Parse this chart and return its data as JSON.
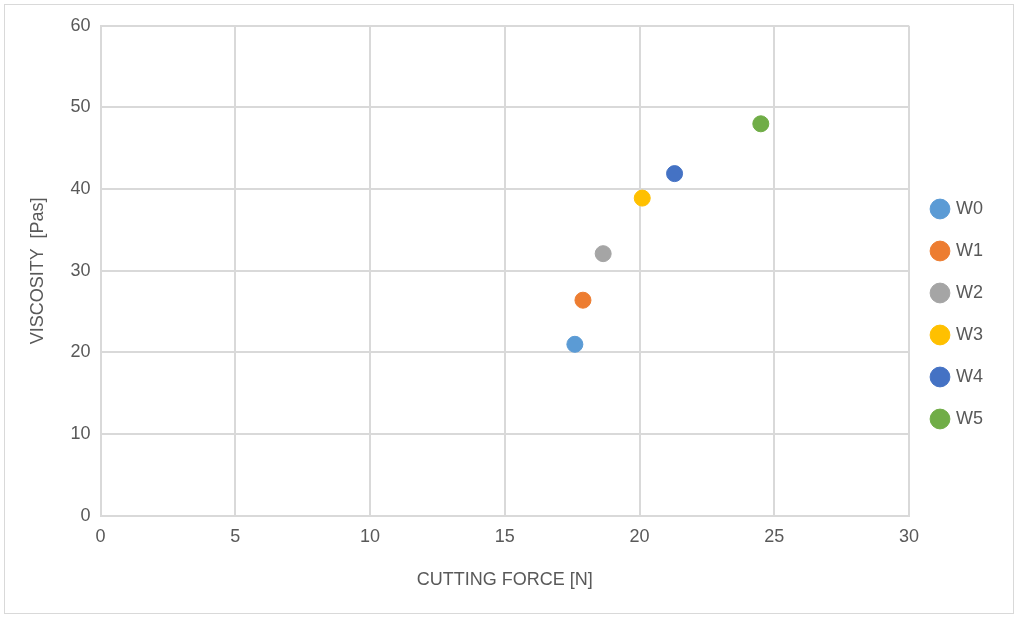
{
  "chart_data": {
    "type": "scatter",
    "xlabel": "CUTTING FORCE [N]",
    "ylabel": "VISCOSITY  [Pas]",
    "xlim": [
      0,
      30
    ],
    "xticks": [
      0,
      5,
      10,
      15,
      20,
      25,
      30
    ],
    "ylim": [
      0,
      60
    ],
    "yticks": [
      0,
      10,
      20,
      30,
      40,
      50,
      60
    ],
    "grid": true,
    "legend": "right",
    "marker": "circle",
    "series": [
      {
        "name": "W0",
        "color": "#5b9bd5",
        "x": [
          17.6
        ],
        "values": [
          21
        ]
      },
      {
        "name": "W1",
        "color": "#ed7d31",
        "x": [
          17.9
        ],
        "values": [
          26.4
        ]
      },
      {
        "name": "W2",
        "color": "#a5a5a5",
        "x": [
          18.65
        ],
        "values": [
          32.1
        ]
      },
      {
        "name": "W3",
        "color": "#ffc000",
        "x": [
          20.1
        ],
        "values": [
          38.9
        ]
      },
      {
        "name": "W4",
        "color": "#4472c4",
        "x": [
          21.3
        ],
        "values": [
          41.9
        ]
      },
      {
        "name": "W5",
        "color": "#70ad47",
        "x": [
          24.5
        ],
        "values": [
          48
        ]
      }
    ]
  }
}
